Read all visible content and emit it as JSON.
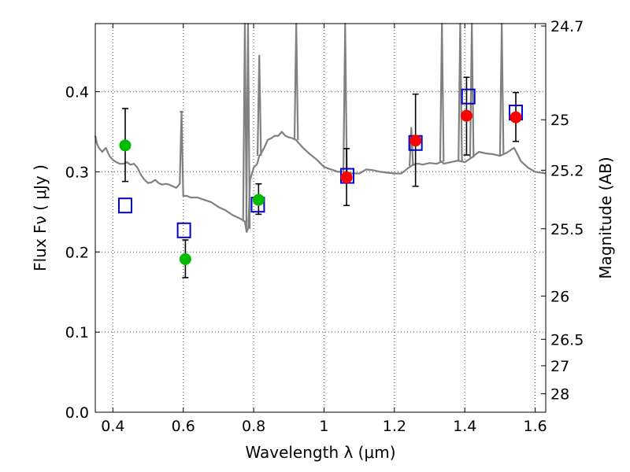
{
  "chart_data": {
    "type": "scatter",
    "xlabel": "Wavelength  λ (μm)",
    "ylabel": "Flux  Fν  ( μJy )",
    "y2label": "Magnitude (AB)",
    "xlim": [
      0.35,
      1.63
    ],
    "ylim": [
      0.0,
      0.485
    ],
    "grid": true,
    "xticks": [
      0.4,
      0.6,
      0.8,
      1.0,
      1.2,
      1.4,
      1.6
    ],
    "xtick_labels": [
      "0.4",
      "0.6",
      "0.8",
      "1",
      "1.2",
      "1.4",
      "1.6"
    ],
    "yticks": [
      0.0,
      0.1,
      0.2,
      0.3,
      0.4
    ],
    "ytick_labels": [
      "0.0",
      "0.1",
      "0.2",
      "0.3",
      "0.4"
    ],
    "y2ticks": [
      {
        "label": "24.7",
        "flux": 0.482
      },
      {
        "label": "25",
        "flux": 0.365
      },
      {
        "label": "25.2",
        "flux": 0.302
      },
      {
        "label": "25.5",
        "flux": 0.229
      },
      {
        "label": "26",
        "flux": 0.145
      },
      {
        "label": "26.5",
        "flux": 0.091
      },
      {
        "label": "27",
        "flux": 0.058
      },
      {
        "label": "28",
        "flux": 0.023
      }
    ],
    "colors": {
      "spectrum": "#808080",
      "green_points": "#00bb00",
      "red_points": "#ff0000",
      "model_squares": "#0000cc",
      "errorbars": "#000000",
      "grid": "#555555"
    },
    "spectrum": {
      "x": [
        0.35,
        0.355,
        0.36,
        0.37,
        0.38,
        0.39,
        0.4,
        0.41,
        0.42,
        0.43,
        0.44,
        0.45,
        0.46,
        0.47,
        0.48,
        0.49,
        0.5,
        0.51,
        0.52,
        0.53,
        0.54,
        0.55,
        0.56,
        0.57,
        0.58,
        0.59,
        0.595,
        0.6,
        0.61,
        0.62,
        0.64,
        0.66,
        0.68,
        0.7,
        0.72,
        0.74,
        0.75,
        0.76,
        0.768,
        0.775,
        0.78,
        0.785,
        0.79,
        0.8,
        0.81,
        0.816,
        0.82,
        0.83,
        0.84,
        0.85,
        0.86,
        0.87,
        0.88,
        0.89,
        0.9,
        0.91,
        0.92,
        0.93,
        0.94,
        0.96,
        0.98,
        1.0,
        1.02,
        1.04,
        1.06,
        1.08,
        1.1,
        1.12,
        1.14,
        1.16,
        1.18,
        1.2,
        1.22,
        1.24,
        1.25,
        1.26,
        1.27,
        1.28,
        1.3,
        1.32,
        1.335,
        1.34,
        1.36,
        1.38,
        1.4,
        1.42,
        1.44,
        1.46,
        1.48,
        1.5,
        1.52,
        1.54,
        1.56,
        1.58,
        1.6,
        1.63
      ],
      "y": [
        0.345,
        0.335,
        0.33,
        0.325,
        0.33,
        0.32,
        0.315,
        0.312,
        0.31,
        0.31,
        0.312,
        0.309,
        0.31,
        0.305,
        0.296,
        0.29,
        0.286,
        0.287,
        0.29,
        0.286,
        0.284,
        0.285,
        0.284,
        0.282,
        0.28,
        0.285,
        0.375,
        0.27,
        0.27,
        0.268,
        0.268,
        0.265,
        0.262,
        0.256,
        0.252,
        0.246,
        0.244,
        0.242,
        0.24,
        0.238,
        0.225,
        0.23,
        0.29,
        0.305,
        0.31,
        0.32,
        0.322,
        0.33,
        0.34,
        0.342,
        0.345,
        0.345,
        0.35,
        0.345,
        0.343,
        0.342,
        0.34,
        0.335,
        0.33,
        0.322,
        0.315,
        0.306,
        0.303,
        0.3,
        0.3,
        0.298,
        0.298,
        0.303,
        0.302,
        0.3,
        0.299,
        0.298,
        0.298,
        0.305,
        0.308,
        0.31,
        0.31,
        0.309,
        0.311,
        0.31,
        0.313,
        0.31,
        0.312,
        0.314,
        0.312,
        0.318,
        0.325,
        0.323,
        0.322,
        0.32,
        0.324,
        0.33,
        0.313,
        0.305,
        0.3,
        0.298
      ]
    },
    "emission_lines": [
      {
        "x": 0.595,
        "y": 0.375
      },
      {
        "x": 0.775,
        "y": 0.485
      },
      {
        "x": 0.784,
        "y": 0.485
      },
      {
        "x": 0.816,
        "y": 0.445
      },
      {
        "x": 0.921,
        "y": 0.485
      },
      {
        "x": 1.06,
        "y": 0.485
      },
      {
        "x": 1.248,
        "y": 0.355
      },
      {
        "x": 1.335,
        "y": 0.485
      },
      {
        "x": 1.387,
        "y": 0.485
      },
      {
        "x": 1.42,
        "y": 0.485
      },
      {
        "x": 1.505,
        "y": 0.485
      }
    ],
    "series": [
      {
        "marker": "circle",
        "color": "#00bb00",
        "points": [
          {
            "x": 0.435,
            "y": 0.333,
            "err": [
              0.288,
              0.379
            ]
          },
          {
            "x": 0.606,
            "y": 0.191,
            "err": [
              0.168,
              0.215
            ]
          },
          {
            "x": 0.814,
            "y": 0.265,
            "err": [
              0.247,
              0.285
            ]
          }
        ]
      },
      {
        "marker": "circle",
        "color": "#ff0000",
        "points": [
          {
            "x": 1.064,
            "y": 0.293,
            "err": [
              0.258,
              0.329
            ]
          },
          {
            "x": 1.26,
            "y": 0.339,
            "err": [
              0.282,
              0.397
            ]
          },
          {
            "x": 1.405,
            "y": 0.37,
            "err": [
              0.321,
              0.418
            ]
          },
          {
            "x": 1.545,
            "y": 0.368,
            "err": [
              0.338,
              0.399
            ]
          }
        ]
      },
      {
        "marker": "square",
        "color": "#0000cc",
        "points": [
          {
            "x": 0.435,
            "y": 0.258
          },
          {
            "x": 0.602,
            "y": 0.227
          },
          {
            "x": 0.812,
            "y": 0.259
          },
          {
            "x": 1.066,
            "y": 0.295
          },
          {
            "x": 1.26,
            "y": 0.336
          },
          {
            "x": 1.41,
            "y": 0.394
          },
          {
            "x": 1.545,
            "y": 0.374
          }
        ]
      }
    ]
  }
}
